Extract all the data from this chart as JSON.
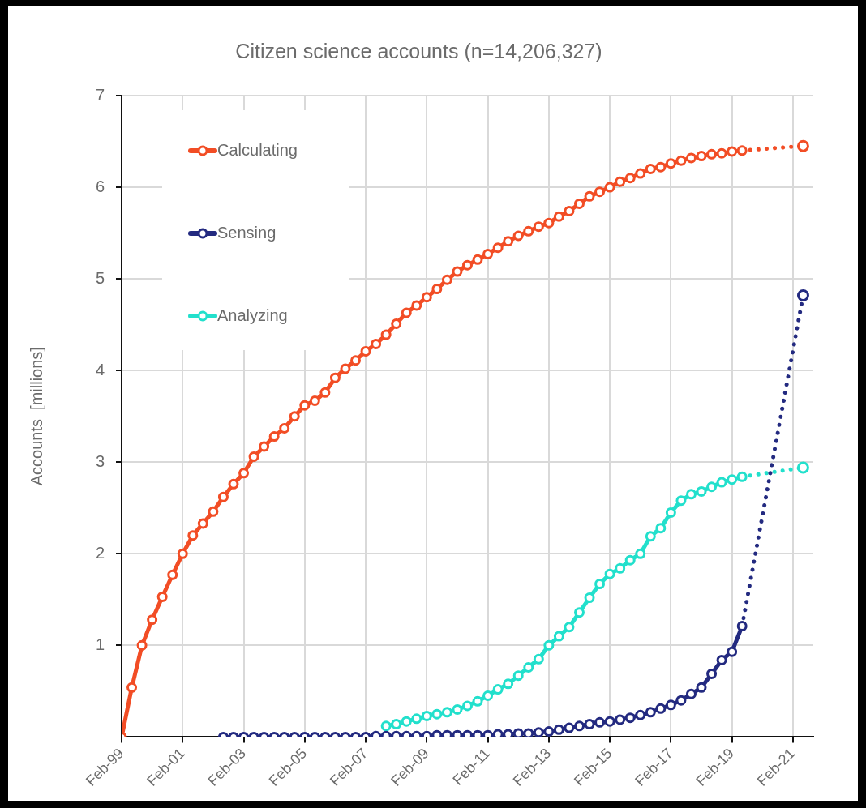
{
  "chart_data": {
    "type": "line",
    "title": "Citizen science accounts (n=14,206,327)",
    "ylabel": "Accounts  [millions]",
    "xlim": [
      "1999-02",
      "2021-10"
    ],
    "xticks": [
      {
        "value": "1999-02",
        "label": "Feb-99"
      },
      {
        "value": "2001-02",
        "label": "Feb-01"
      },
      {
        "value": "2003-02",
        "label": "Feb-03"
      },
      {
        "value": "2005-02",
        "label": "Feb-05"
      },
      {
        "value": "2007-02",
        "label": "Feb-07"
      },
      {
        "value": "2009-02",
        "label": "Feb-09"
      },
      {
        "value": "2011-02",
        "label": "Feb-11"
      },
      {
        "value": "2013-02",
        "label": "Feb-13"
      },
      {
        "value": "2015-02",
        "label": "Feb-15"
      },
      {
        "value": "2017-02",
        "label": "Feb-17"
      },
      {
        "value": "2019-02",
        "label": "Feb-19"
      },
      {
        "value": "2021-02",
        "label": "Feb-21"
      }
    ],
    "ylim": [
      0,
      7
    ],
    "yticks": [
      1,
      2,
      3,
      4,
      5,
      6,
      7
    ],
    "grid": true,
    "legend": "top left",
    "marker": "circle",
    "line_style": "solid",
    "series": [
      {
        "name": "Calculating",
        "color": "#f24d25",
        "x": [
          "1999-02",
          "1999-06",
          "1999-10",
          "2000-02",
          "2000-06",
          "2000-10",
          "2001-02",
          "2001-06",
          "2001-10",
          "2002-02",
          "2002-06",
          "2002-10",
          "2003-02",
          "2003-06",
          "2003-10",
          "2004-02",
          "2004-06",
          "2004-10",
          "2005-02",
          "2005-06",
          "2005-10",
          "2006-02",
          "2006-06",
          "2006-10",
          "2007-02",
          "2007-06",
          "2007-10",
          "2008-02",
          "2008-06",
          "2008-10",
          "2009-02",
          "2009-06",
          "2009-10",
          "2010-02",
          "2010-06",
          "2010-10",
          "2011-02",
          "2011-06",
          "2011-10",
          "2012-02",
          "2012-06",
          "2012-10",
          "2013-02",
          "2013-06",
          "2013-10",
          "2014-02",
          "2014-06",
          "2014-10",
          "2015-02",
          "2015-06",
          "2015-10",
          "2016-02",
          "2016-06",
          "2016-10",
          "2017-02",
          "2017-06",
          "2017-10",
          "2018-02",
          "2018-06",
          "2018-10",
          "2019-02",
          "2019-06"
        ],
        "values": [
          0,
          0.54,
          1.0,
          1.28,
          1.53,
          1.77,
          2.0,
          2.2,
          2.33,
          2.46,
          2.62,
          2.76,
          2.88,
          3.06,
          3.17,
          3.28,
          3.37,
          3.5,
          3.62,
          3.67,
          3.76,
          3.92,
          4.02,
          4.11,
          4.21,
          4.29,
          4.39,
          4.51,
          4.63,
          4.71,
          4.8,
          4.89,
          4.99,
          5.08,
          5.15,
          5.21,
          5.27,
          5.34,
          5.41,
          5.47,
          5.52,
          5.57,
          5.61,
          5.68,
          5.74,
          5.82,
          5.9,
          5.95,
          6.0,
          6.06,
          6.1,
          6.15,
          6.2,
          6.22,
          6.26,
          6.29,
          6.32,
          6.34,
          6.36,
          6.37,
          6.39,
          6.4
        ]
      },
      {
        "name": "Sensing",
        "color": "#232a80",
        "x": [
          "2002-06",
          "2002-10",
          "2003-02",
          "2003-06",
          "2003-10",
          "2004-02",
          "2004-06",
          "2004-10",
          "2005-02",
          "2005-06",
          "2005-10",
          "2006-02",
          "2006-06",
          "2006-10",
          "2007-02",
          "2007-06",
          "2007-10",
          "2008-02",
          "2008-06",
          "2008-10",
          "2009-02",
          "2009-06",
          "2009-10",
          "2010-02",
          "2010-06",
          "2010-10",
          "2011-02",
          "2011-06",
          "2011-10",
          "2012-02",
          "2012-06",
          "2012-10",
          "2013-02",
          "2013-06",
          "2013-10",
          "2014-02",
          "2014-06",
          "2014-10",
          "2015-02",
          "2015-06",
          "2015-10",
          "2016-02",
          "2016-06",
          "2016-10",
          "2017-02",
          "2017-06",
          "2017-10",
          "2018-02",
          "2018-06",
          "2018-10",
          "2019-02",
          "2019-06"
        ],
        "values": [
          0,
          0,
          0,
          0,
          0,
          0,
          0,
          0,
          0,
          0,
          0,
          0,
          0,
          0,
          0,
          0.01,
          0.01,
          0.01,
          0.01,
          0.01,
          0.01,
          0.02,
          0.02,
          0.02,
          0.02,
          0.02,
          0.02,
          0.03,
          0.03,
          0.04,
          0.04,
          0.05,
          0.06,
          0.08,
          0.1,
          0.12,
          0.14,
          0.16,
          0.17,
          0.19,
          0.21,
          0.24,
          0.27,
          0.31,
          0.35,
          0.4,
          0.47,
          0.54,
          0.69,
          0.84,
          0.93,
          1.21
        ]
      },
      {
        "name": "Analyzing",
        "color": "#22e0cc",
        "x": [
          "2007-10",
          "2008-02",
          "2008-06",
          "2008-10",
          "2009-02",
          "2009-06",
          "2009-10",
          "2010-02",
          "2010-06",
          "2010-10",
          "2011-02",
          "2011-06",
          "2011-10",
          "2012-02",
          "2012-06",
          "2012-10",
          "2013-02",
          "2013-06",
          "2013-10",
          "2014-02",
          "2014-06",
          "2014-10",
          "2015-02",
          "2015-06",
          "2015-10",
          "2016-02",
          "2016-06",
          "2016-10",
          "2017-02",
          "2017-06",
          "2017-10",
          "2018-02",
          "2018-06",
          "2018-10",
          "2019-02",
          "2019-06"
        ],
        "values": [
          0.12,
          0.14,
          0.17,
          0.2,
          0.23,
          0.25,
          0.27,
          0.3,
          0.34,
          0.39,
          0.45,
          0.52,
          0.58,
          0.67,
          0.76,
          0.85,
          1.0,
          1.1,
          1.2,
          1.36,
          1.52,
          1.67,
          1.78,
          1.84,
          1.93,
          2.0,
          2.19,
          2.28,
          2.45,
          2.58,
          2.65,
          2.68,
          2.73,
          2.78,
          2.81,
          2.84
        ]
      },
      {
        "color": "#f24d25",
        "line_style": "dotted",
        "x": [
          "2019-06",
          "2021-06"
        ],
        "values": [
          6.4,
          6.45
        ]
      },
      {
        "color": "#232a80",
        "line_style": "dotted",
        "x": [
          "2019-06",
          "2021-06"
        ],
        "values": [
          1.21,
          4.82
        ]
      },
      {
        "color": "#22e0cc",
        "line_style": "dotted",
        "x": [
          "2019-06",
          "2021-06"
        ],
        "values": [
          2.84,
          2.94
        ]
      }
    ]
  }
}
